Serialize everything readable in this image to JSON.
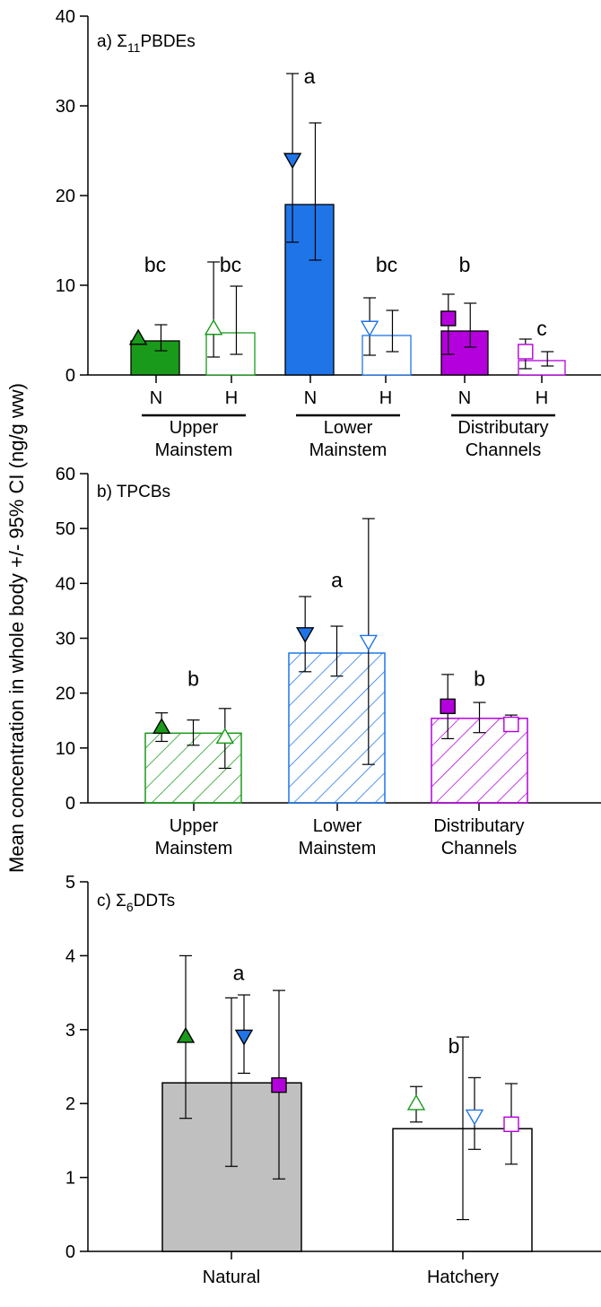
{
  "figure": {
    "ylabel": "Mean concentration in whole body +/- 95% CI (ng/g ww)"
  },
  "chart_data": [
    {
      "panel_label": "a) Σ11PBDEs",
      "panel_prefix": "a) ",
      "panel_sigma": "Σ",
      "panel_sub": "11",
      "panel_rest": "PBDEs",
      "type": "bar",
      "ylim": [
        0,
        40
      ],
      "yticks": [
        "0",
        "10",
        "20",
        "30",
        "40"
      ],
      "bar_values": [
        3.8,
        4.7,
        19.0,
        4.4,
        4.9,
        1.6
      ],
      "bar_ci": [
        [
          2.7,
          5.6
        ],
        [
          2.3,
          9.9
        ],
        [
          12.8,
          28.1
        ],
        [
          2.6,
          7.2
        ],
        [
          3.1,
          8.0
        ],
        [
          1.0,
          2.6
        ]
      ],
      "bar_style": [
        "filled",
        "open",
        "filled",
        "open",
        "filled",
        "open"
      ],
      "bar_color": [
        "green",
        "green",
        "blue",
        "blue",
        "purple",
        "purple"
      ],
      "markers": [
        {
          "value": 4.1,
          "ci": [
            4.1,
            4.1
          ],
          "shape": "triangle-up",
          "fill": "green",
          "style": "filled"
        },
        {
          "value": 5.2,
          "ci": [
            2.0,
            12.6
          ],
          "shape": "triangle-up",
          "fill": "green",
          "style": "open"
        },
        {
          "value": 24.0,
          "ci": [
            14.8,
            33.6
          ],
          "shape": "triangle-down",
          "fill": "blue",
          "style": "filled"
        },
        {
          "value": 5.3,
          "ci": [
            2.2,
            8.6
          ],
          "shape": "triangle-down",
          "fill": "blue",
          "style": "open"
        },
        {
          "value": 6.3,
          "ci": [
            2.3,
            9.0
          ],
          "shape": "square",
          "fill": "purple",
          "style": "filled"
        },
        {
          "value": 2.6,
          "ci": [
            0.7,
            4.0
          ],
          "shape": "square",
          "fill": "purple",
          "style": "open"
        }
      ],
      "sig_letters": [
        "bc",
        "bc",
        "a",
        "bc",
        "b",
        "c"
      ],
      "sig_letter_values": [
        11.5,
        11.5,
        32.5,
        11.5,
        11.5,
        4.4
      ],
      "origin_labels": [
        "N",
        "H",
        "N",
        "H",
        "N",
        "H"
      ],
      "group_labels": [
        {
          "line1": "Upper",
          "line2": "Mainstem"
        },
        {
          "line1": "Lower",
          "line2": "Mainstem"
        },
        {
          "line1": "Distributary",
          "line2": "Channels"
        }
      ]
    },
    {
      "panel_label": "b) TPCBs",
      "type": "bar",
      "ylim": [
        0,
        60
      ],
      "yticks": [
        "0",
        "10",
        "20",
        "30",
        "40",
        "50",
        "60"
      ],
      "categories": [
        "Upper Mainstem",
        "Lower Mainstem",
        "Distributary Channels"
      ],
      "values": [
        12.7,
        27.3,
        15.4
      ],
      "ci": [
        [
          10.5,
          15.1
        ],
        [
          23.1,
          32.2
        ],
        [
          12.8,
          18.3
        ]
      ],
      "markers": [
        {
          "group": 0,
          "value": 13.8,
          "ci": [
            11.2,
            16.4
          ],
          "shape": "triangle-up",
          "fill": "green",
          "style": "filled"
        },
        {
          "group": 0,
          "value": 12.0,
          "ci": [
            6.3,
            17.2
          ],
          "shape": "triangle-up",
          "fill": "green",
          "style": "open"
        },
        {
          "group": 1,
          "value": 30.8,
          "ci": [
            23.9,
            37.6
          ],
          "shape": "triangle-down",
          "fill": "blue",
          "style": "filled"
        },
        {
          "group": 1,
          "value": 29.4,
          "ci": [
            7.0,
            51.8
          ],
          "shape": "triangle-down",
          "fill": "blue",
          "style": "open"
        },
        {
          "group": 2,
          "value": 17.6,
          "ci": [
            11.7,
            23.4
          ],
          "shape": "square",
          "fill": "purple",
          "style": "filled"
        },
        {
          "group": 2,
          "value": 14.3,
          "ci": [
            13.3,
            16.0
          ],
          "shape": "square",
          "fill": "purple",
          "style": "open"
        }
      ],
      "sig_letters": [
        "b",
        "a",
        "b"
      ],
      "sig_letter_values": [
        21.3,
        39.3,
        21.3
      ],
      "group_labels": [
        {
          "line1": "Upper",
          "line2": "Mainstem"
        },
        {
          "line1": "Lower",
          "line2": "Mainstem"
        },
        {
          "line1": "Distributary",
          "line2": "Channels"
        }
      ]
    },
    {
      "panel_label": "c) Σ6DDTs",
      "panel_prefix": "c) ",
      "panel_sigma": "Σ",
      "panel_sub": "6",
      "panel_rest": "DDTs",
      "type": "bar",
      "ylim": [
        0,
        5
      ],
      "yticks": [
        "0",
        "1",
        "2",
        "3",
        "4",
        "5"
      ],
      "categories": [
        "Natural",
        "Hatchery"
      ],
      "values": [
        2.28,
        1.66
      ],
      "ci": [
        [
          1.15,
          3.43
        ],
        [
          0.43,
          2.9
        ]
      ],
      "markers": [
        {
          "group": 0,
          "value": 2.91,
          "ci": [
            1.8,
            4.0
          ],
          "shape": "triangle-up",
          "fill": "green",
          "style": "filled"
        },
        {
          "group": 0,
          "value": 2.91,
          "ci": [
            2.41,
            3.47
          ],
          "shape": "triangle-down",
          "fill": "blue",
          "style": "filled"
        },
        {
          "group": 0,
          "value": 2.25,
          "ci": [
            0.98,
            3.53
          ],
          "shape": "square",
          "fill": "purple",
          "style": "filled"
        },
        {
          "group": 1,
          "value": 2.0,
          "ci": [
            1.75,
            2.23
          ],
          "shape": "triangle-up",
          "fill": "green",
          "style": "open"
        },
        {
          "group": 1,
          "value": 1.83,
          "ci": [
            1.38,
            2.35
          ],
          "shape": "triangle-down",
          "fill": "blue",
          "style": "open"
        },
        {
          "group": 1,
          "value": 1.72,
          "ci": [
            1.18,
            2.27
          ],
          "shape": "square",
          "fill": "purple",
          "style": "open"
        }
      ],
      "sig_letters": [
        "a",
        "b"
      ],
      "sig_letter_values": [
        3.67,
        2.68
      ]
    }
  ],
  "colors": {
    "green": "#1a9a1a",
    "blue": "#1f75e8",
    "purple": "#b400dc",
    "gray": "#c0c0c0",
    "axis": "#000000"
  }
}
